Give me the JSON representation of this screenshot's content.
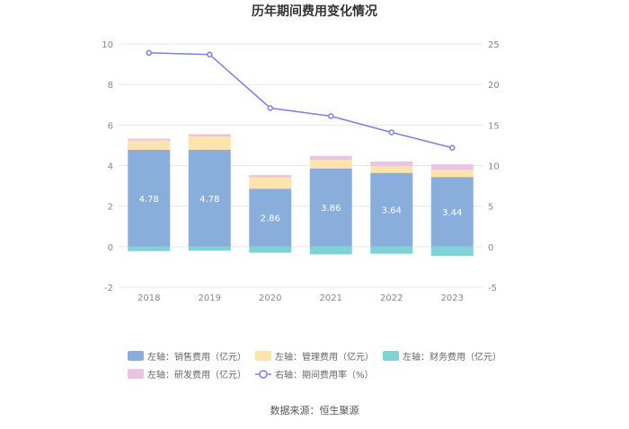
{
  "chart_data": {
    "type": "bar",
    "title": "历年期间费用变化情况",
    "categories": [
      "2018",
      "2019",
      "2020",
      "2021",
      "2022",
      "2023"
    ],
    "left_axis": {
      "ylim": [
        -2,
        10
      ],
      "ticks": [
        "-2",
        "0",
        "2",
        "4",
        "6",
        "8",
        "10"
      ]
    },
    "right_axis": {
      "ylim": [
        -5,
        25
      ],
      "ticks": [
        "-5",
        "0",
        "5",
        "10",
        "15",
        "20",
        "25"
      ]
    },
    "series": [
      {
        "name": "左轴：销售费用（亿元）",
        "type": "bar",
        "axis": "left",
        "color": "#8aaedb",
        "values": [
          4.78,
          4.78,
          2.86,
          3.86,
          3.64,
          3.44
        ],
        "labels": [
          "4.78",
          "4.78",
          "2.86",
          "3.86",
          "3.64",
          "3.44"
        ]
      },
      {
        "name": "左轴：管理费用（亿元）",
        "type": "bar",
        "axis": "left",
        "color": "#fde3ac",
        "values": [
          0.45,
          0.65,
          0.55,
          0.42,
          0.33,
          0.35
        ]
      },
      {
        "name": "左轴：财务费用（亿元）",
        "type": "bar",
        "axis": "left",
        "color": "#7fd3d6",
        "values": [
          -0.22,
          -0.2,
          -0.3,
          -0.38,
          -0.35,
          -0.45
        ]
      },
      {
        "name": "左轴：研发费用（亿元）",
        "type": "bar",
        "axis": "left",
        "color": "#ecc4e3",
        "values": [
          0.1,
          0.12,
          0.12,
          0.2,
          0.23,
          0.27
        ]
      },
      {
        "name": "右轴：期间费用率（%）",
        "type": "line",
        "axis": "right",
        "color": "#7b7fe8",
        "values": [
          23.9,
          23.7,
          17.1,
          16.1,
          14.1,
          12.2
        ]
      }
    ]
  },
  "source": "数据来源：恒生聚源"
}
